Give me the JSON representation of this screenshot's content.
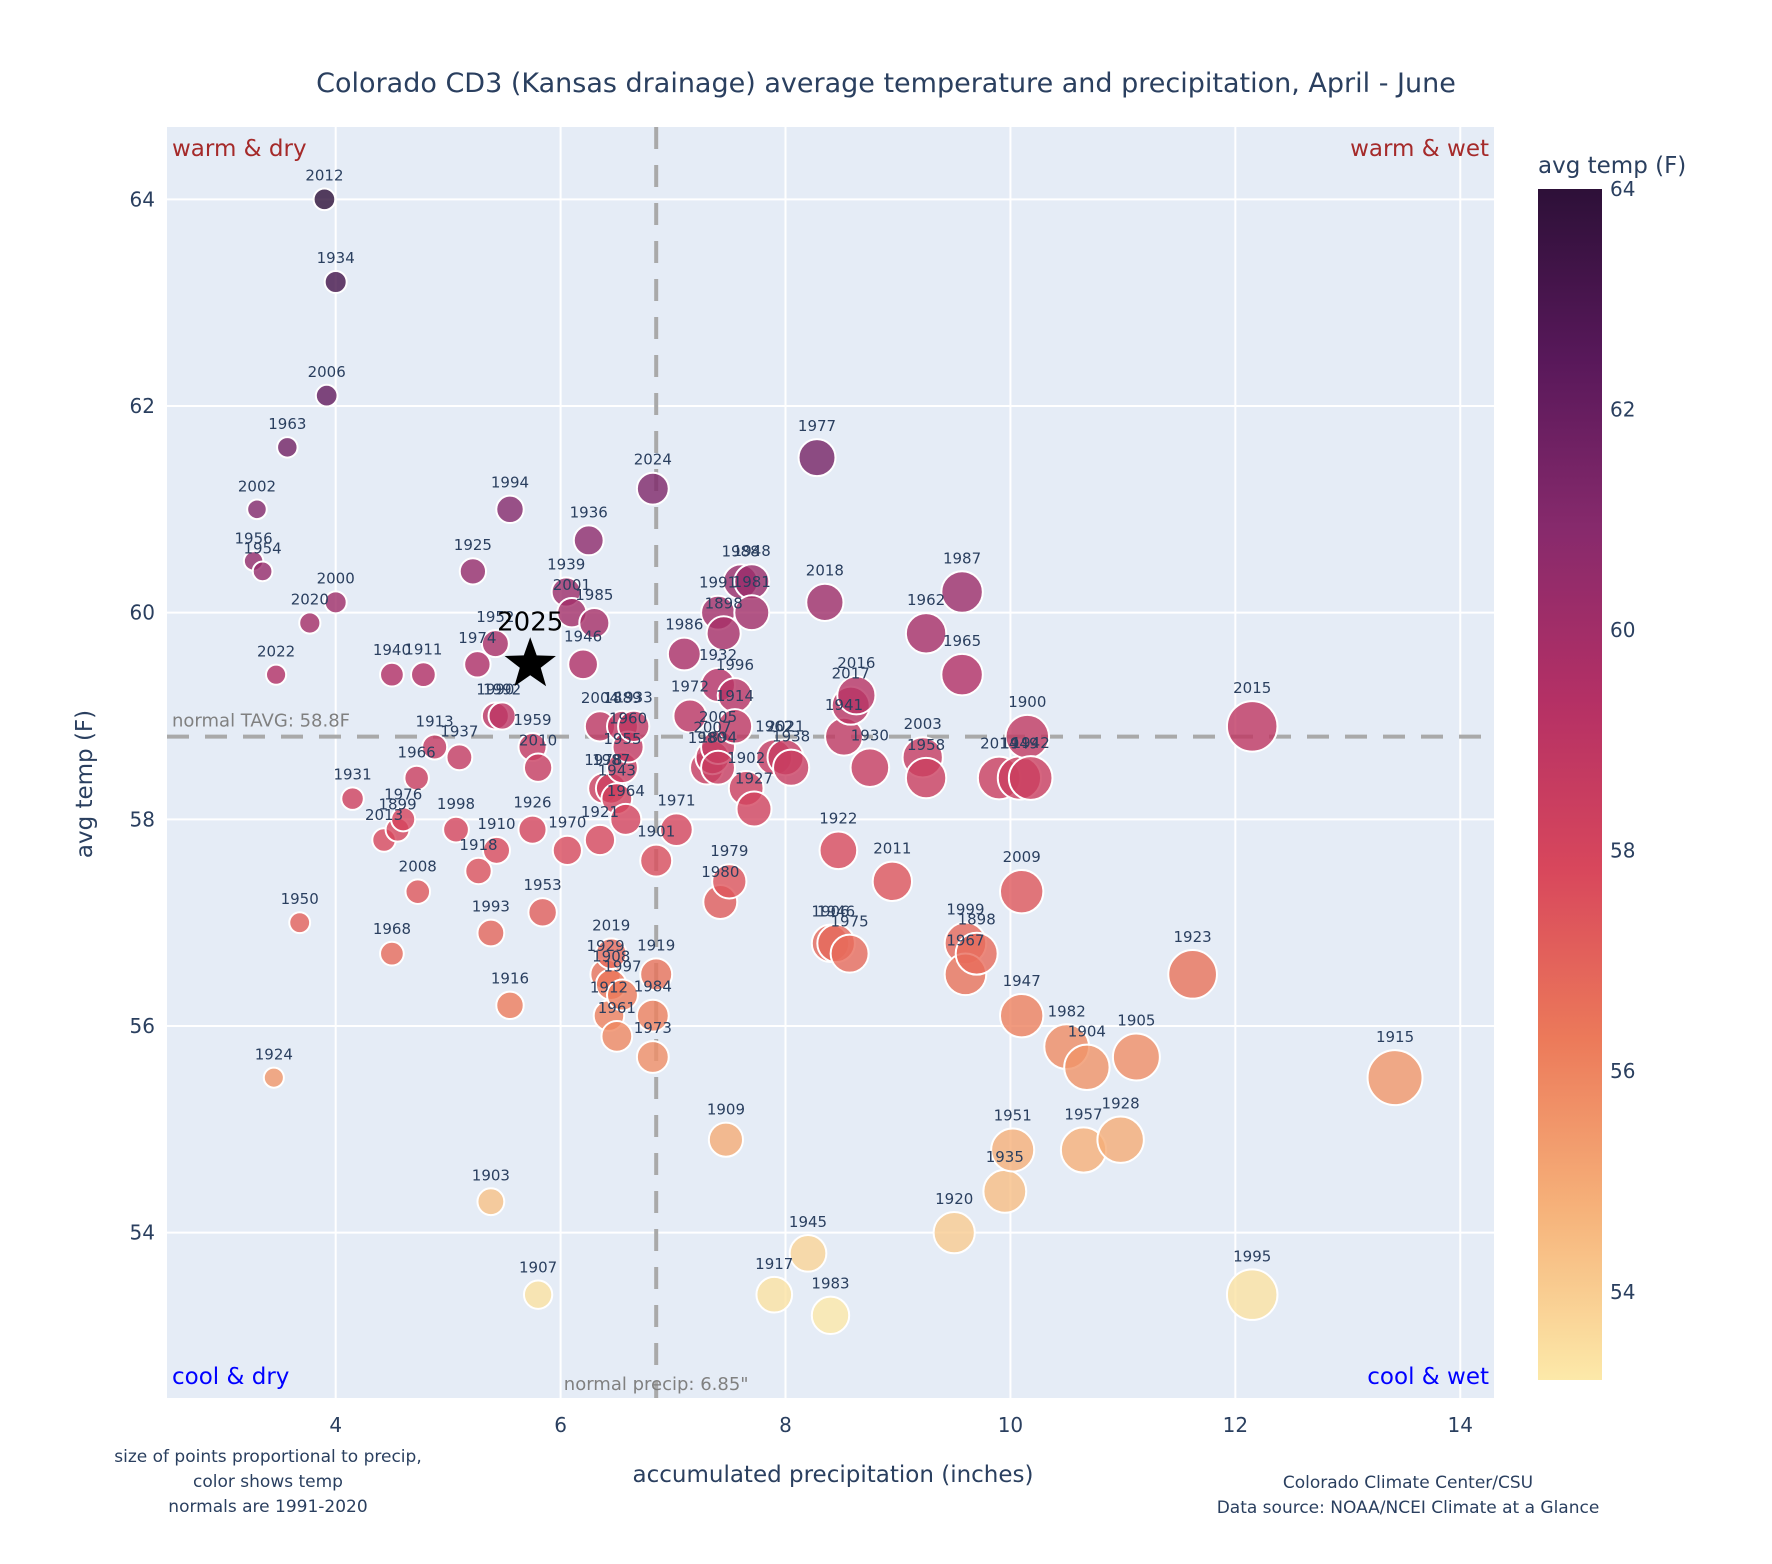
{
  "chart_data": {
    "type": "scatter",
    "title": "Colorado CD3 (Kansas drainage) average temperature and precipitation, April - June",
    "xlabel": "accumulated precipitation (inches)",
    "ylabel": "avg temp (F)",
    "xlim": [
      2.5,
      14.3
    ],
    "ylim": [
      52.4,
      64.7
    ],
    "x_ticks": [
      4,
      6,
      8,
      10,
      12,
      14
    ],
    "y_ticks": [
      54,
      56,
      58,
      60,
      62,
      64
    ],
    "grid": true,
    "marker_size_encodes": "precip",
    "marker_color_encodes": "avg temp",
    "colorbar": {
      "title": "avg temp (F)",
      "range": [
        53.2,
        64.0
      ],
      "ticks": [
        54,
        56,
        58,
        60,
        62,
        64
      ],
      "colorscale": [
        "#fce9a9",
        "#f6b27a",
        "#ec7a5a",
        "#d8475c",
        "#b43065",
        "#872a6c",
        "#58185a",
        "#2d1038"
      ],
      "position": "right"
    },
    "normals": {
      "temp": 58.8,
      "temp_label": "normal TAVG: 58.8F",
      "precip": 6.85,
      "precip_label": "normal precip: 6.85\""
    },
    "quadrants": {
      "top_left": "warm & dry",
      "top_right": "warm & wet",
      "bottom_left": "cool & dry",
      "bottom_right": "cool & wet"
    },
    "highlight": {
      "year": "2025",
      "precip": 5.73,
      "temp": 59.5,
      "marker": "star"
    },
    "points": [
      {
        "year": "2012",
        "precip": 3.9,
        "temp": 64.0
      },
      {
        "year": "1934",
        "precip": 4.0,
        "temp": 63.2
      },
      {
        "year": "2006",
        "precip": 3.92,
        "temp": 62.1
      },
      {
        "year": "1963",
        "precip": 3.57,
        "temp": 61.6
      },
      {
        "year": "2002",
        "precip": 3.3,
        "temp": 61.0
      },
      {
        "year": "1956",
        "precip": 3.27,
        "temp": 60.5
      },
      {
        "year": "1954",
        "precip": 3.35,
        "temp": 60.4
      },
      {
        "year": "2000",
        "precip": 4.0,
        "temp": 60.1
      },
      {
        "year": "2020",
        "precip": 3.77,
        "temp": 59.9
      },
      {
        "year": "2022",
        "precip": 3.47,
        "temp": 59.4
      },
      {
        "year": "1940",
        "precip": 4.5,
        "temp": 59.4
      },
      {
        "year": "1911",
        "precip": 4.78,
        "temp": 59.4
      },
      {
        "year": "1994",
        "precip": 5.55,
        "temp": 61.0
      },
      {
        "year": "1925",
        "precip": 5.22,
        "temp": 60.4
      },
      {
        "year": "1952",
        "precip": 5.42,
        "temp": 59.7
      },
      {
        "year": "1974",
        "precip": 5.26,
        "temp": 59.5
      },
      {
        "year": "1990",
        "precip": 5.42,
        "temp": 59.0
      },
      {
        "year": "1992",
        "precip": 5.48,
        "temp": 59.0
      },
      {
        "year": "1959",
        "precip": 5.75,
        "temp": 58.7
      },
      {
        "year": "2010",
        "precip": 5.8,
        "temp": 58.5
      },
      {
        "year": "1936",
        "precip": 6.25,
        "temp": 60.7
      },
      {
        "year": "1939",
        "precip": 6.05,
        "temp": 60.2
      },
      {
        "year": "2001",
        "precip": 6.1,
        "temp": 60.0
      },
      {
        "year": "1985",
        "precip": 6.3,
        "temp": 59.9
      },
      {
        "year": "1946",
        "precip": 6.2,
        "temp": 59.5
      },
      {
        "year": "2024",
        "precip": 6.82,
        "temp": 61.2
      },
      {
        "year": "1913",
        "precip": 4.88,
        "temp": 58.7
      },
      {
        "year": "1937",
        "precip": 5.1,
        "temp": 58.6
      },
      {
        "year": "1966",
        "precip": 4.72,
        "temp": 58.4
      },
      {
        "year": "1931",
        "precip": 4.15,
        "temp": 58.2
      },
      {
        "year": "1976",
        "precip": 4.6,
        "temp": 58.0
      },
      {
        "year": "1899",
        "precip": 4.55,
        "temp": 57.9
      },
      {
        "year": "2013",
        "precip": 4.43,
        "temp": 57.8
      },
      {
        "year": "1998",
        "precip": 5.07,
        "temp": 57.9
      },
      {
        "year": "1910",
        "precip": 5.43,
        "temp": 57.7
      },
      {
        "year": "1918",
        "precip": 5.27,
        "temp": 57.5
      },
      {
        "year": "2008",
        "precip": 4.73,
        "temp": 57.3
      },
      {
        "year": "1926",
        "precip": 5.75,
        "temp": 57.9
      },
      {
        "year": "1970",
        "precip": 6.06,
        "temp": 57.7
      },
      {
        "year": "1953",
        "precip": 5.84,
        "temp": 57.1
      },
      {
        "year": "1993",
        "precip": 5.38,
        "temp": 56.9
      },
      {
        "year": "1916",
        "precip": 5.55,
        "temp": 56.2
      },
      {
        "year": "1950",
        "precip": 3.68,
        "temp": 57.0
      },
      {
        "year": "1968",
        "precip": 4.5,
        "temp": 56.7
      },
      {
        "year": "1924",
        "precip": 3.45,
        "temp": 55.5
      },
      {
        "year": "1903",
        "precip": 5.38,
        "temp": 54.3
      },
      {
        "year": "1907",
        "precip": 5.8,
        "temp": 53.4
      },
      {
        "year": "2004",
        "precip": 6.35,
        "temp": 58.9
      },
      {
        "year": "1889",
        "precip": 6.55,
        "temp": 58.9
      },
      {
        "year": "1933",
        "precip": 6.65,
        "temp": 58.9
      },
      {
        "year": "1960",
        "precip": 6.6,
        "temp": 58.7
      },
      {
        "year": "1955",
        "precip": 6.55,
        "temp": 58.5
      },
      {
        "year": "1978",
        "precip": 6.38,
        "temp": 58.3
      },
      {
        "year": "1987",
        "precip": 6.45,
        "temp": 58.3
      },
      {
        "year": "1943",
        "precip": 6.5,
        "temp": 58.2
      },
      {
        "year": "1964",
        "precip": 6.58,
        "temp": 58.0
      },
      {
        "year": "1921",
        "precip": 6.35,
        "temp": 57.8
      },
      {
        "year": "1901",
        "precip": 6.85,
        "temp": 57.6
      },
      {
        "year": "1971",
        "precip": 7.03,
        "temp": 57.9
      },
      {
        "year": "2019",
        "precip": 6.45,
        "temp": 56.7
      },
      {
        "year": "1929",
        "precip": 6.4,
        "temp": 56.5
      },
      {
        "year": "1908",
        "precip": 6.45,
        "temp": 56.4
      },
      {
        "year": "1997",
        "precip": 6.55,
        "temp": 56.3
      },
      {
        "year": "1919",
        "precip": 6.85,
        "temp": 56.5
      },
      {
        "year": "1912",
        "precip": 6.43,
        "temp": 56.1
      },
      {
        "year": "1984",
        "precip": 6.82,
        "temp": 56.1
      },
      {
        "year": "1961",
        "precip": 6.5,
        "temp": 55.9
      },
      {
        "year": "1973",
        "precip": 6.82,
        "temp": 55.7
      },
      {
        "year": "1977",
        "precip": 8.28,
        "temp": 61.5
      },
      {
        "year": "1948",
        "precip": 7.7,
        "temp": 60.3
      },
      {
        "year": "1991",
        "precip": 7.4,
        "temp": 60.0
      },
      {
        "year": "1988",
        "precip": 7.6,
        "temp": 60.3
      },
      {
        "year": "1898",
        "precip": 7.45,
        "temp": 59.8
      },
      {
        "year": "1981",
        "precip": 7.7,
        "temp": 60.0
      },
      {
        "year": "1986",
        "precip": 7.1,
        "temp": 59.6
      },
      {
        "year": "1932",
        "precip": 7.4,
        "temp": 59.3
      },
      {
        "year": "1996",
        "precip": 7.55,
        "temp": 59.2
      },
      {
        "year": "1972",
        "precip": 7.15,
        "temp": 59.0
      },
      {
        "year": "1914",
        "precip": 7.55,
        "temp": 58.9
      },
      {
        "year": "2005",
        "precip": 7.4,
        "temp": 58.7
      },
      {
        "year": "2007",
        "precip": 7.35,
        "temp": 58.6
      },
      {
        "year": "1980",
        "precip": 7.3,
        "temp": 58.5
      },
      {
        "year": "1894",
        "precip": 7.4,
        "temp": 58.5
      },
      {
        "year": "1902",
        "precip": 7.65,
        "temp": 58.3
      },
      {
        "year": "1927",
        "precip": 7.72,
        "temp": 58.1
      },
      {
        "year": "1962",
        "precip": 7.9,
        "temp": 58.6
      },
      {
        "year": "2021",
        "precip": 8.0,
        "temp": 58.6
      },
      {
        "year": "1938",
        "precip": 8.05,
        "temp": 58.5
      },
      {
        "year": "1979",
        "precip": 7.5,
        "temp": 57.4
      },
      {
        "year": "1980b",
        "precip": 7.42,
        "temp": 57.2
      },
      {
        "year": "1909",
        "precip": 7.47,
        "temp": 54.9
      },
      {
        "year": "1945",
        "precip": 8.2,
        "temp": 53.8
      },
      {
        "year": "1917",
        "precip": 7.9,
        "temp": 53.4
      },
      {
        "year": "1983",
        "precip": 8.4,
        "temp": 53.2
      },
      {
        "year": "2018",
        "precip": 8.35,
        "temp": 60.1
      },
      {
        "year": "2016",
        "precip": 8.63,
        "temp": 59.2
      },
      {
        "year": "2017",
        "precip": 8.58,
        "temp": 59.1
      },
      {
        "year": "1941",
        "precip": 8.52,
        "temp": 58.8
      },
      {
        "year": "1930",
        "precip": 8.75,
        "temp": 58.5
      },
      {
        "year": "1922",
        "precip": 8.47,
        "temp": 57.7
      },
      {
        "year": "2011",
        "precip": 8.95,
        "temp": 57.4
      },
      {
        "year": "1906",
        "precip": 8.4,
        "temp": 56.8
      },
      {
        "year": "1946b",
        "precip": 8.45,
        "temp": 56.8
      },
      {
        "year": "1975",
        "precip": 8.57,
        "temp": 56.7
      },
      {
        "year": "1987",
        "precip": 9.57,
        "temp": 60.2
      },
      {
        "year": "1962b",
        "precip": 9.25,
        "temp": 59.8
      },
      {
        "year": "1965",
        "precip": 9.57,
        "temp": 59.4
      },
      {
        "year": "2003",
        "precip": 9.22,
        "temp": 58.6
      },
      {
        "year": "1958",
        "precip": 9.25,
        "temp": 58.4
      },
      {
        "year": "2014",
        "precip": 9.9,
        "temp": 58.4
      },
      {
        "year": "1949",
        "precip": 10.08,
        "temp": 58.4
      },
      {
        "year": "1942",
        "precip": 10.18,
        "temp": 58.4
      },
      {
        "year": "1900",
        "precip": 10.15,
        "temp": 58.8
      },
      {
        "year": "2009",
        "precip": 10.1,
        "temp": 57.3
      },
      {
        "year": "1999",
        "precip": 9.6,
        "temp": 56.8
      },
      {
        "year": "1898b",
        "precip": 9.7,
        "temp": 56.7
      },
      {
        "year": "1967",
        "precip": 9.6,
        "temp": 56.5
      },
      {
        "year": "1947",
        "precip": 10.1,
        "temp": 56.1
      },
      {
        "year": "1982",
        "precip": 10.5,
        "temp": 55.8
      },
      {
        "year": "1904",
        "precip": 10.68,
        "temp": 55.6
      },
      {
        "year": "1905",
        "precip": 11.12,
        "temp": 55.7
      },
      {
        "year": "1951",
        "precip": 10.02,
        "temp": 54.8
      },
      {
        "year": "1935",
        "precip": 9.95,
        "temp": 54.4
      },
      {
        "year": "1957",
        "precip": 10.65,
        "temp": 54.8
      },
      {
        "year": "1928",
        "precip": 10.98,
        "temp": 54.9
      },
      {
        "year": "1920",
        "precip": 9.5,
        "temp": 54.0
      },
      {
        "year": "1923",
        "precip": 11.62,
        "temp": 56.5
      },
      {
        "year": "2015",
        "precip": 12.15,
        "temp": 58.9
      },
      {
        "year": "1915",
        "precip": 13.42,
        "temp": 55.5
      },
      {
        "year": "1995",
        "precip": 12.15,
        "temp": 53.4
      }
    ]
  },
  "footnotes": {
    "left": [
      "size of points proportional to precip,",
      "color shows temp",
      "normals are 1991-2020"
    ],
    "right": [
      "Colorado Climate Center/CSU",
      "Data source: NOAA/NCEI Climate at a Glance"
    ]
  },
  "colors": {
    "plot_bg": "#e5ecf6",
    "grid": "#ffffff",
    "text": "#2a3f5f",
    "warm_label": "#a52a2a",
    "cool_label": "#0000ff",
    "normal_line": "#a9a9a9"
  }
}
